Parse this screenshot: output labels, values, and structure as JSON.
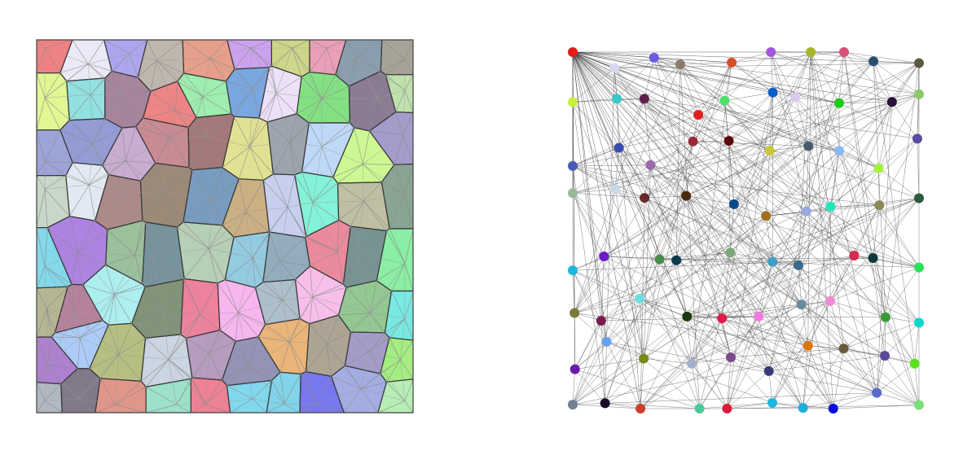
{
  "figure": {
    "left_panel": {
      "title": "",
      "kind": "voronoi-region-map"
    },
    "right_panel": {
      "title": "",
      "kind": "node-link-graph"
    }
  },
  "nodes": [
    {
      "id": 0,
      "color": "#e41a1c"
    },
    {
      "id": 1,
      "color": "#d8d8ef"
    },
    {
      "id": 2,
      "color": "#6a5ce0"
    },
    {
      "id": 3,
      "color": "#8b7a6a"
    },
    {
      "id": 4,
      "color": "#d1502a"
    },
    {
      "id": 5,
      "color": "#a356e0"
    },
    {
      "id": 6,
      "color": "#a8b52a"
    },
    {
      "id": 7,
      "color": "#d9507a"
    },
    {
      "id": 8,
      "color": "#2a4f6e"
    },
    {
      "id": 9,
      "color": "#5e5a42"
    },
    {
      "id": 10,
      "color": "#c8f03a"
    },
    {
      "id": 11,
      "color": "#3ac7c7"
    },
    {
      "id": 12,
      "color": "#5e1f4e"
    },
    {
      "id": 13,
      "color": "#e01f1f"
    },
    {
      "id": 14,
      "color": "#4ee06e"
    },
    {
      "id": 15,
      "color": "#0a5fc8"
    },
    {
      "id": 16,
      "color": "#dcc8f0"
    },
    {
      "id": 17,
      "color": "#1ec81e"
    },
    {
      "id": 18,
      "color": "#2a0f3a"
    },
    {
      "id": 19,
      "color": "#8cc86a"
    },
    {
      "id": 20,
      "color": "#4a5ab8"
    },
    {
      "id": 21,
      "color": "#3a4ab0"
    },
    {
      "id": 22,
      "color": "#9a6aaa"
    },
    {
      "id": 23,
      "color": "#9a2a3a"
    },
    {
      "id": 24,
      "color": "#5a0a0a"
    },
    {
      "id": 25,
      "color": "#c8c83a"
    },
    {
      "id": 26,
      "color": "#4a5a6a"
    },
    {
      "id": 27,
      "color": "#8ab8f0"
    },
    {
      "id": 28,
      "color": "#a4f03a"
    },
    {
      "id": 29,
      "color": "#5a4aa0"
    },
    {
      "id": 30,
      "color": "#9ab89a"
    },
    {
      "id": 31,
      "color": "#c8d8e8"
    },
    {
      "id": 32,
      "color": "#6a2a2a"
    },
    {
      "id": 33,
      "color": "#4a2a0a"
    },
    {
      "id": 34,
      "color": "#0a4a8a"
    },
    {
      "id": 35,
      "color": "#a0701e"
    },
    {
      "id": 36,
      "color": "#9aa8e0"
    },
    {
      "id": 37,
      "color": "#1ee8b8"
    },
    {
      "id": 38,
      "color": "#8a8a5a"
    },
    {
      "id": 39,
      "color": "#2a5a3a"
    },
    {
      "id": 40,
      "color": "#1eb8d8"
    },
    {
      "id": 41,
      "color": "#6a1ec8"
    },
    {
      "id": 42,
      "color": "#4a8a4a"
    },
    {
      "id": 43,
      "color": "#0a3a4a"
    },
    {
      "id": 44,
      "color": "#7aa87a"
    },
    {
      "id": 45,
      "color": "#3aa0c8"
    },
    {
      "id": 46,
      "color": "#3a6a8a"
    },
    {
      "id": 47,
      "color": "#d82a4a"
    },
    {
      "id": 48,
      "color": "#0a3a3a"
    },
    {
      "id": 49,
      "color": "#2ae05a"
    },
    {
      "id": 50,
      "color": "#7a7a3a"
    },
    {
      "id": 51,
      "color": "#7a1a4a"
    },
    {
      "id": 52,
      "color": "#6ae0e0"
    },
    {
      "id": 53,
      "color": "#1a3a0a"
    },
    {
      "id": 54,
      "color": "#e01a4a"
    },
    {
      "id": 55,
      "color": "#f07ae0"
    },
    {
      "id": 56,
      "color": "#6a8aa0"
    },
    {
      "id": 57,
      "color": "#f08ad8"
    },
    {
      "id": 58,
      "color": "#3a9a3a"
    },
    {
      "id": 59,
      "color": "#0ad8c8"
    },
    {
      "id": 60,
      "color": "#6a1aa8"
    },
    {
      "id": 61,
      "color": "#6aa0f0"
    },
    {
      "id": 62,
      "color": "#7a8a1a"
    },
    {
      "id": 63,
      "color": "#a0b0c8"
    },
    {
      "id": 64,
      "color": "#7a4a8a"
    },
    {
      "id": 65,
      "color": "#3a3a7a"
    },
    {
      "id": 66,
      "color": "#d8780a"
    },
    {
      "id": 67,
      "color": "#6a5a3a"
    },
    {
      "id": 68,
      "color": "#5a4a9a"
    },
    {
      "id": 69,
      "color": "#5ae01a"
    },
    {
      "id": 70,
      "color": "#708090"
    },
    {
      "id": 71,
      "color": "#1a0a2a"
    },
    {
      "id": 72,
      "color": "#c8402a"
    },
    {
      "id": 73,
      "color": "#4ac89a"
    },
    {
      "id": 74,
      "color": "#e01a3a"
    },
    {
      "id": 75,
      "color": "#1ab8e0"
    },
    {
      "id": 76,
      "color": "#1ab0d8"
    },
    {
      "id": 77,
      "color": "#0a0ae0"
    },
    {
      "id": 78,
      "color": "#5a6ac8"
    },
    {
      "id": 79,
      "color": "#7ae07a"
    }
  ]
}
